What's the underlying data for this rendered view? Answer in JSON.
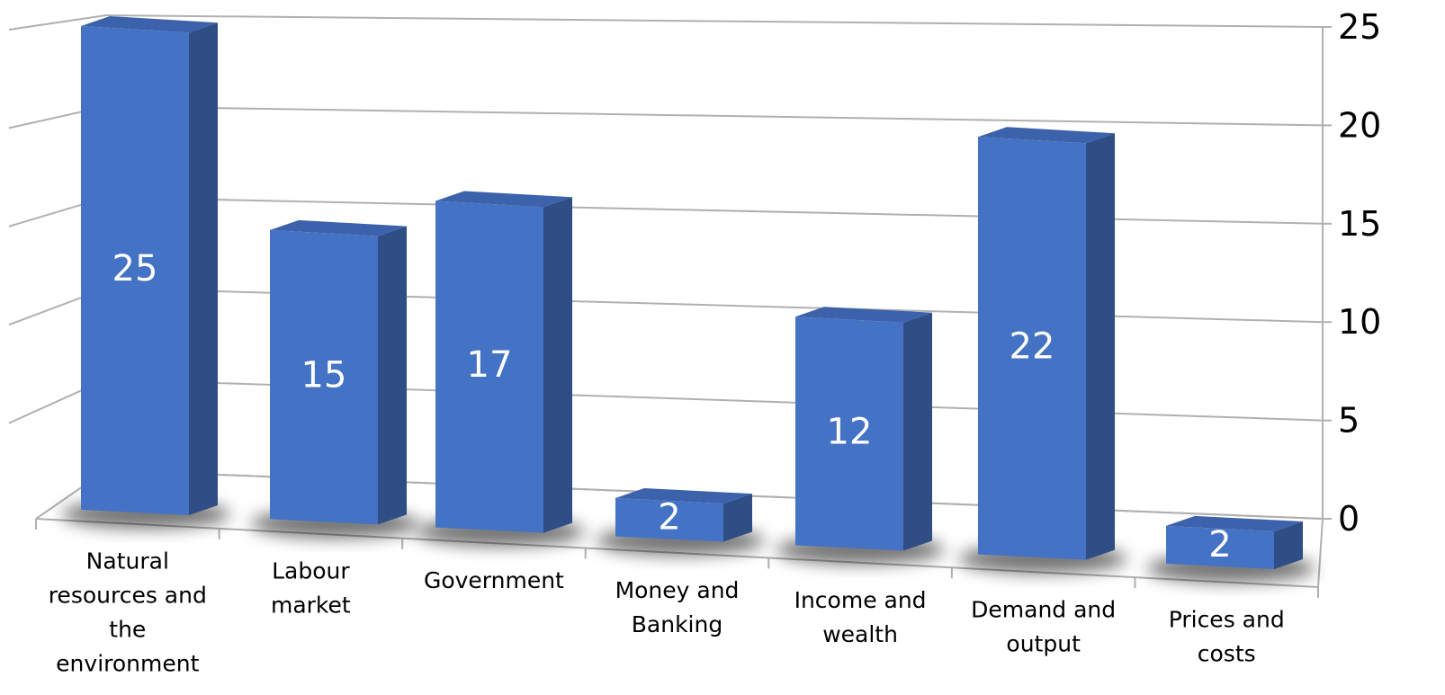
{
  "chart_data": {
    "type": "bar",
    "title": "",
    "xlabel": "",
    "ylabel": "",
    "ylim": [
      0,
      25
    ],
    "yticks": [
      "0",
      "5",
      "10",
      "15",
      "20",
      "25"
    ],
    "grid": true,
    "style": "3d-column",
    "categories": [
      [
        "Natural",
        "resources and",
        "the",
        "environment"
      ],
      [
        "Labour",
        "market"
      ],
      [
        "Government"
      ],
      [
        "Money and",
        "Banking"
      ],
      [
        "Income and",
        "wealth"
      ],
      [
        "Demand and",
        "output"
      ],
      [
        "Prices and",
        "costs"
      ]
    ],
    "values": [
      25,
      15,
      17,
      2,
      12,
      22,
      2
    ],
    "data_labels": [
      "25",
      "15",
      "17",
      "2",
      "12",
      "22",
      "2"
    ],
    "colors": {
      "bar_front": "#4472c4",
      "bar_side": "#2f4e86",
      "bar_top": "#3b62aa",
      "grid": "#b0b0b0"
    }
  }
}
